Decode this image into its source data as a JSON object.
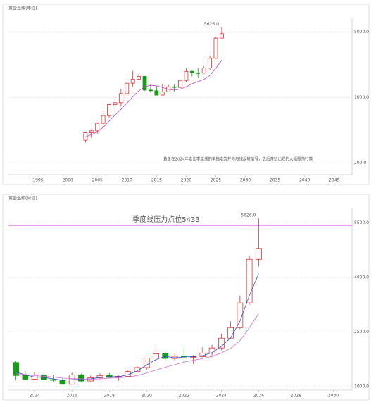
{
  "chart_data": [
    {
      "type": "candlestick",
      "title": "黄金连续(年线)",
      "log": true,
      "x": [
        2003,
        2004,
        2005,
        2006,
        2007,
        2008,
        2009,
        2010,
        2011,
        2012,
        2013,
        2014,
        2015,
        2016,
        2017,
        2018,
        2019,
        2020,
        2021,
        2022,
        2023,
        2024,
        2025,
        2026
      ],
      "open": [
        350,
        420,
        440,
        530,
        640,
        840,
        880,
        1100,
        1420,
        1570,
        1680,
        1200,
        1180,
        1060,
        1150,
        1300,
        1280,
        1520,
        1900,
        1830,
        1820,
        2060,
        2620,
        4300
      ],
      "high": [
        430,
        460,
        540,
        730,
        850,
        1030,
        1230,
        1430,
        1920,
        1800,
        1700,
        1390,
        1310,
        1380,
        1360,
        1370,
        1560,
        2080,
        1960,
        2070,
        2150,
        2790,
        4400,
        5626
      ],
      "low": [
        330,
        370,
        410,
        510,
        600,
        680,
        800,
        1040,
        1300,
        1520,
        1180,
        1130,
        1050,
        1050,
        1140,
        1160,
        1270,
        1450,
        1680,
        1610,
        1800,
        1980,
        2580,
        4300
      ],
      "close": [
        420,
        440,
        530,
        640,
        840,
        880,
        1100,
        1420,
        1570,
        1680,
        1200,
        1180,
        1060,
        1150,
        1300,
        1280,
        1520,
        1900,
        1830,
        1820,
        2060,
        2620,
        4300,
        4800
      ],
      "up_color": "#e03030",
      "down_color": "#1a9a1a",
      "lines": [
        {
          "color": "#c040c0",
          "values": [
            380,
            400,
            430,
            480,
            560,
            650,
            750,
            870,
            1020,
            1180,
            1300,
            1350,
            1330,
            1280,
            1220,
            1200,
            1230,
            1300,
            1400,
            1480,
            1560,
            1720,
            2050,
            2500
          ]
        }
      ],
      "xlim": [
        1990,
        2048
      ],
      "xticks": [
        1995,
        2000,
        2005,
        2010,
        2015,
        2020,
        2025,
        2030,
        2035,
        2040,
        2045
      ],
      "ylim": [
        150,
        7000
      ],
      "yticks": [
        {
          "value": 200,
          "label": "200.0"
        },
        {
          "value": 1000,
          "label": "1000.0"
        },
        {
          "value": 5000,
          "label": "5000.0"
        }
      ],
      "peak": {
        "value": 5626,
        "label": "5626.0"
      },
      "annotation": "黄金在2024年走出季度线的单独走势并与月线反转信号，之后开始出现的大幅振荡行情"
    },
    {
      "type": "candlestick",
      "title": "黄金连续(月线)",
      "log": false,
      "x": [
        2013,
        2013.5,
        2014,
        2014.5,
        2015,
        2015.5,
        2016,
        2016.5,
        2017,
        2017.5,
        2018,
        2018.5,
        2019,
        2019.5,
        2020,
        2020.5,
        2021,
        2021.5,
        2022,
        2022.5,
        2023,
        2023.5,
        2024,
        2024.5,
        2025,
        2025.5,
        2026
      ],
      "open": [
        1660,
        1300,
        1200,
        1320,
        1190,
        1170,
        1060,
        1320,
        1150,
        1240,
        1300,
        1250,
        1280,
        1410,
        1520,
        1780,
        1900,
        1770,
        1830,
        1810,
        1820,
        1920,
        2060,
        2330,
        2620,
        3300,
        4500
      ],
      "high": [
        1700,
        1420,
        1390,
        1350,
        1310,
        1230,
        1380,
        1350,
        1300,
        1360,
        1370,
        1310,
        1440,
        1560,
        1790,
        2080,
        1960,
        1880,
        2070,
        1860,
        2080,
        2150,
        2450,
        2790,
        3500,
        4600,
        5626
      ],
      "low": [
        1180,
        1180,
        1190,
        1140,
        1130,
        1050,
        1060,
        1120,
        1140,
        1200,
        1230,
        1160,
        1270,
        1380,
        1450,
        1680,
        1680,
        1720,
        1620,
        1620,
        1800,
        1800,
        2000,
        2300,
        2580,
        3250,
        4300
      ],
      "close": [
        1300,
        1200,
        1320,
        1190,
        1170,
        1060,
        1320,
        1150,
        1240,
        1300,
        1250,
        1280,
        1410,
        1520,
        1780,
        1900,
        1770,
        1830,
        1810,
        1820,
        1920,
        2060,
        2330,
        2620,
        3300,
        4500,
        4800
      ],
      "up_color": "#e03030",
      "down_color": "#1a9a1a",
      "lines": [
        {
          "color": "#3050d0",
          "values": [
            1400,
            1320,
            1260,
            1250,
            1210,
            1170,
            1190,
            1200,
            1210,
            1250,
            1270,
            1270,
            1320,
            1430,
            1590,
            1740,
            1830,
            1790,
            1810,
            1820,
            1850,
            1930,
            2100,
            2340,
            2800,
            3500,
            4100
          ]
        },
        {
          "color": "#d070d0",
          "values": [
            1350,
            1330,
            1300,
            1280,
            1260,
            1230,
            1220,
            1210,
            1200,
            1210,
            1230,
            1240,
            1260,
            1300,
            1370,
            1450,
            1530,
            1600,
            1670,
            1720,
            1770,
            1830,
            1920,
            2050,
            2260,
            2620,
            3000
          ]
        }
      ],
      "xlim": [
        2012.6,
        2031
      ],
      "xticks": [
        2014,
        2016,
        2018,
        2020,
        2022,
        2024,
        2026,
        2028,
        2030
      ],
      "ylim": [
        900,
        5900
      ],
      "yticks": [
        {
          "value": 1000,
          "label": "1000.0"
        },
        {
          "value": 2500,
          "label": "2500.0"
        },
        {
          "value": 4000,
          "label": "4000.0"
        },
        {
          "value": 5500,
          "label": "5500.0"
        }
      ],
      "peak": {
        "value": 5626,
        "label": "5626.0"
      },
      "resistance": {
        "value": 5433,
        "label": "季度线压力点位5433",
        "color": "#d040d0"
      }
    }
  ]
}
